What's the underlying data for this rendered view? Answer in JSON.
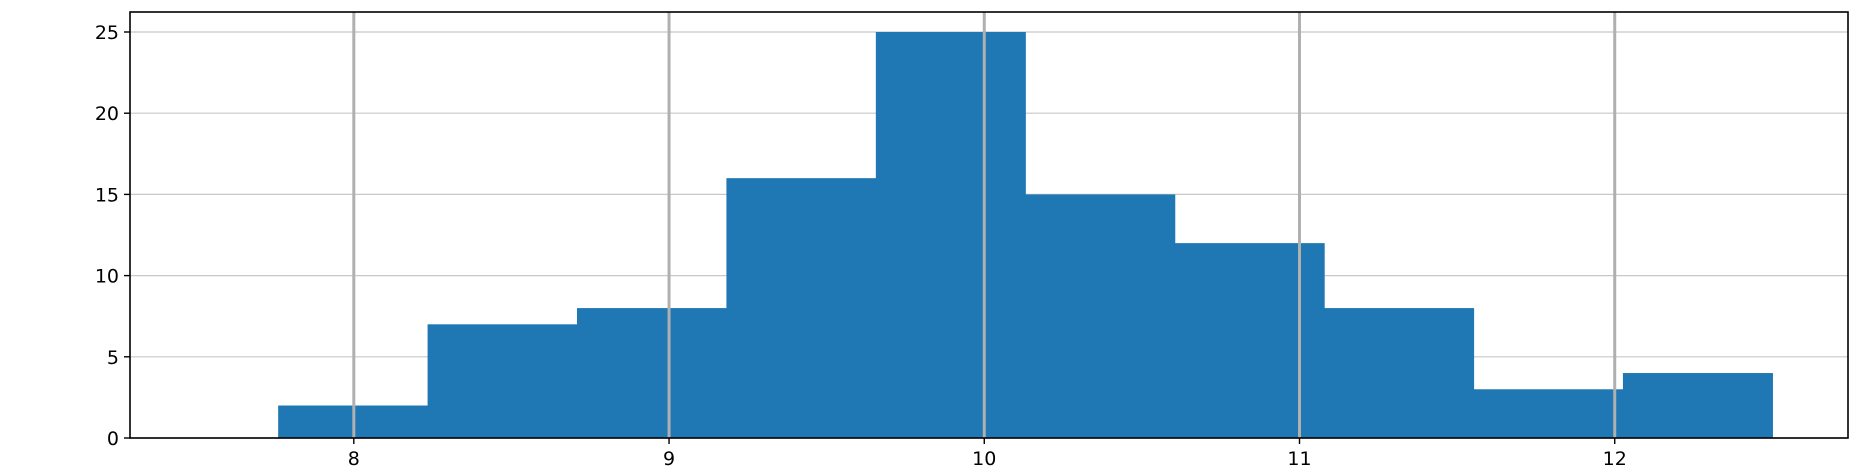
{
  "chart_data": {
    "type": "bar",
    "subtype": "histogram",
    "bin_edges": [
      7.76,
      8.234,
      8.708,
      9.182,
      9.656,
      10.13,
      10.604,
      11.078,
      11.552,
      12.026,
      12.5
    ],
    "values": [
      2,
      7,
      8,
      16,
      25,
      15,
      12,
      8,
      3,
      4
    ],
    "title": "",
    "xlabel": "",
    "ylabel": "",
    "xlim": [
      7.29,
      12.74
    ],
    "ylim": [
      0,
      25
    ],
    "xticks": [
      8,
      9,
      10,
      11,
      12
    ],
    "yticks": [
      0,
      5,
      10,
      15,
      20,
      25
    ],
    "grid": true,
    "legend": "none",
    "colors": {
      "bar": "#1f77b4",
      "grid_x": "#b0b0b0",
      "grid_y": "#c8c8c8",
      "axis": "#000000"
    }
  }
}
